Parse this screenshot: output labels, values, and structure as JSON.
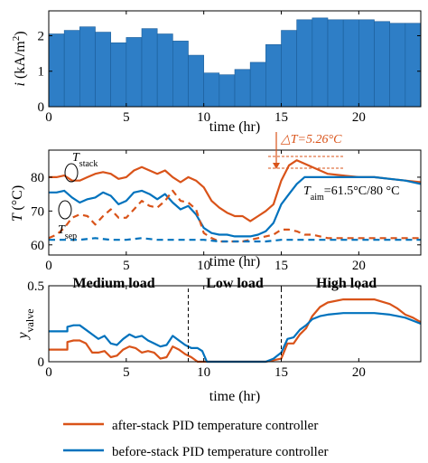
{
  "colors": {
    "after": "#D95319",
    "before": "#0072BD",
    "bar": "#2E7EC6"
  },
  "chart_data": [
    {
      "type": "bar",
      "ylabel_var": "i",
      "ylabel_unit": "(kA/m",
      "ylabel_sup": "2",
      "ylabel_end": ")",
      "xlabel": "time (hr)",
      "xlim": [
        0,
        24
      ],
      "ylim": [
        0,
        2.7
      ],
      "xticks": [
        "0",
        "5",
        "10",
        "15",
        "20"
      ],
      "xtick_values": [
        0,
        5,
        10,
        15,
        20
      ],
      "yticks": [
        "0",
        "1",
        "2"
      ],
      "ytick_values": [
        0,
        1,
        2
      ],
      "bar_width_hr": 1,
      "x": [
        0,
        1,
        2,
        3,
        4,
        5,
        6,
        7,
        8,
        9,
        10,
        11,
        12,
        13,
        14,
        15,
        16,
        17,
        18,
        19,
        20,
        21,
        22,
        23
      ],
      "values": [
        2.05,
        2.15,
        2.25,
        2.1,
        1.8,
        1.95,
        2.2,
        2.05,
        1.85,
        1.45,
        0.95,
        0.9,
        1.05,
        1.25,
        1.75,
        2.15,
        2.45,
        2.5,
        2.45,
        2.45,
        2.45,
        2.4,
        2.35,
        2.35
      ]
    },
    {
      "type": "line",
      "ylabel_var": "T",
      "ylabel_unit": "(°C)",
      "xlabel": "time (hr)",
      "xlim": [
        0,
        24
      ],
      "ylim": [
        57,
        88
      ],
      "xticks": [
        "0",
        "5",
        "10",
        "15",
        "20"
      ],
      "xtick_values": [
        0,
        5,
        10,
        15,
        20
      ],
      "yticks": [
        "60",
        "70",
        "80"
      ],
      "ytick_values": [
        60,
        70,
        80
      ],
      "annotations": {
        "t_stack_main": "T",
        "t_stack_sub": "stack",
        "t_sep_main": "T",
        "t_sep_sub": "sep",
        "delta_t": "△T=5.26°C",
        "t_aim_main": "T",
        "t_aim_sub": "aim",
        "t_aim_value": "=61.5°C/80 °C"
      },
      "series": [
        {
          "key": "after_stack",
          "style": "solid",
          "color_key": "after",
          "x": [
            0,
            0.5,
            1,
            1.5,
            2,
            2.5,
            3,
            3.5,
            4,
            4.5,
            5,
            5.5,
            6,
            6.5,
            7,
            7.5,
            8,
            8.5,
            9,
            9.5,
            10,
            10.5,
            11,
            11.5,
            12,
            12.5,
            13,
            13.5,
            14,
            14.5,
            15,
            15.5,
            16,
            16.5,
            17,
            17.5,
            18,
            19,
            20,
            21,
            22,
            23,
            24
          ],
          "y": [
            80,
            80,
            80.5,
            79,
            79,
            80,
            81,
            81.5,
            81,
            79.5,
            80,
            82,
            83,
            82,
            81,
            82,
            80,
            78.5,
            80,
            79,
            77,
            73,
            71,
            69.5,
            68.5,
            68.5,
            67,
            68.5,
            70,
            72,
            79,
            83.5,
            85,
            84,
            83,
            82,
            81,
            80.5,
            80,
            80,
            79.5,
            79,
            78.5
          ]
        },
        {
          "key": "before_stack",
          "style": "solid",
          "color_key": "before",
          "x": [
            0,
            0.5,
            1,
            1.5,
            2,
            2.5,
            3,
            3.5,
            4,
            4.5,
            5,
            5.5,
            6,
            6.5,
            7,
            7.5,
            8,
            8.5,
            9,
            9.5,
            10,
            10.5,
            11,
            11.5,
            12,
            12.5,
            13,
            13.5,
            14,
            14.5,
            15,
            15.5,
            16,
            16.5,
            17,
            17.5,
            18,
            19,
            20,
            21,
            22,
            23,
            24
          ],
          "y": [
            75.5,
            75.5,
            76,
            74,
            72.5,
            73.5,
            74,
            75.5,
            74.5,
            72,
            73,
            75.5,
            76,
            75,
            73.5,
            75,
            72.5,
            70.5,
            71.5,
            69,
            65,
            63.5,
            63,
            63,
            62.5,
            62.5,
            62.5,
            63,
            64,
            66.5,
            72,
            75,
            78,
            80,
            80,
            80,
            80,
            80,
            80,
            80,
            79.5,
            79,
            78
          ]
        },
        {
          "key": "after_sep",
          "style": "dashed",
          "color_key": "after",
          "x": [
            0,
            0.5,
            1,
            1.5,
            2,
            2.5,
            3,
            3.5,
            4,
            4.5,
            5,
            5.5,
            6,
            6.5,
            7,
            7.5,
            8,
            8.5,
            9,
            9.5,
            10,
            10.5,
            11,
            11.5,
            12,
            12.5,
            13,
            13.5,
            14,
            14.5,
            15,
            15.5,
            16,
            16.5,
            17,
            17.5,
            18,
            19,
            20,
            21,
            22,
            23,
            24
          ],
          "y": [
            62,
            63,
            65,
            68,
            69,
            68.5,
            66,
            68.5,
            70.5,
            68,
            68,
            70.5,
            73,
            71.5,
            71,
            73,
            76,
            73,
            72.5,
            70.5,
            63.5,
            62,
            61,
            61,
            61,
            61,
            61.5,
            62,
            62.5,
            63,
            64.5,
            64.5,
            64,
            63,
            63,
            62.5,
            62,
            62,
            62,
            62,
            62,
            62,
            62
          ]
        },
        {
          "key": "before_sep",
          "style": "dashed",
          "color_key": "before",
          "x": [
            0,
            1,
            2,
            3,
            4,
            5,
            6,
            7,
            8,
            9,
            10,
            11,
            12,
            13,
            14,
            15,
            16,
            17,
            18,
            19,
            20,
            21,
            22,
            23,
            24
          ],
          "y": [
            61.5,
            61.5,
            61.5,
            62,
            61.5,
            61.5,
            62,
            61.5,
            61.5,
            61.5,
            61.5,
            61,
            61,
            61,
            61,
            61.5,
            61.5,
            61.5,
            61.5,
            61.5,
            61.5,
            61.5,
            61.5,
            61.5,
            61.5
          ]
        }
      ]
    },
    {
      "type": "line",
      "ylabel_var": "y",
      "ylabel_sub": "valve",
      "xlabel": "time (hr)",
      "xlim": [
        0,
        24
      ],
      "ylim": [
        0,
        0.5
      ],
      "xticks": [
        "0",
        "5",
        "10",
        "15",
        "20"
      ],
      "xtick_values": [
        0,
        5,
        10,
        15,
        20
      ],
      "yticks": [
        "0",
        "0.5"
      ],
      "ytick_values": [
        0,
        0.5
      ],
      "regions": [
        {
          "label": "Medium load",
          "x_center": 4.2
        },
        {
          "label": "Low load",
          "x_center": 12.0
        },
        {
          "label": "High load",
          "x_center": 19.2
        }
      ],
      "dividers": [
        9,
        15
      ],
      "series": [
        {
          "key": "after",
          "style": "solid",
          "color_key": "after",
          "x": [
            0,
            0.6,
            1.2,
            1.2,
            1.6,
            2.0,
            2.4,
            2.8,
            3.2,
            3.6,
            4.0,
            4.4,
            4.8,
            5.2,
            5.6,
            6.0,
            6.4,
            6.8,
            7.2,
            7.6,
            8.0,
            8.4,
            8.8,
            9.2,
            9.6,
            10,
            11,
            12,
            13,
            14,
            14.5,
            15,
            15.4,
            15.8,
            16.2,
            16.6,
            17,
            17.5,
            18,
            19,
            20,
            21,
            22,
            22.5,
            23,
            23.5,
            24
          ],
          "y": [
            0.08,
            0.08,
            0.08,
            0.13,
            0.14,
            0.14,
            0.12,
            0.06,
            0.06,
            0.07,
            0.03,
            0.04,
            0.08,
            0.1,
            0.09,
            0.06,
            0.07,
            0.06,
            0.02,
            0.03,
            0.1,
            0.08,
            0.05,
            0.03,
            0,
            0,
            0,
            0,
            0,
            0,
            0.01,
            0.02,
            0.12,
            0.12,
            0.18,
            0.22,
            0.3,
            0.36,
            0.39,
            0.41,
            0.41,
            0.41,
            0.38,
            0.35,
            0.31,
            0.29,
            0.26
          ]
        },
        {
          "key": "before",
          "style": "solid",
          "color_key": "before",
          "x": [
            0,
            0.6,
            1.2,
            1.2,
            1.6,
            2.0,
            2.4,
            2.8,
            3.2,
            3.6,
            4.0,
            4.4,
            4.8,
            5.2,
            5.6,
            6.0,
            6.4,
            6.8,
            7.2,
            7.6,
            8.0,
            8.4,
            8.8,
            9.2,
            9.6,
            9.9,
            10.2,
            11,
            12,
            13,
            14,
            14.5,
            15,
            15.4,
            15.8,
            16.2,
            16.6,
            17,
            17.5,
            18,
            19,
            20,
            21,
            22,
            22.5,
            23,
            23.5,
            24
          ],
          "y": [
            0.2,
            0.2,
            0.2,
            0.23,
            0.24,
            0.24,
            0.21,
            0.18,
            0.15,
            0.17,
            0.12,
            0.11,
            0.15,
            0.18,
            0.16,
            0.17,
            0.14,
            0.12,
            0.1,
            0.11,
            0.17,
            0.14,
            0.11,
            0.09,
            0.09,
            0.07,
            0,
            0,
            0,
            0,
            0,
            0.02,
            0.06,
            0.15,
            0.16,
            0.21,
            0.24,
            0.28,
            0.3,
            0.31,
            0.32,
            0.32,
            0.32,
            0.31,
            0.3,
            0.29,
            0.27,
            0.25
          ]
        }
      ]
    }
  ],
  "legend": [
    {
      "label": "after-stack PID temperature controller",
      "color_key": "after"
    },
    {
      "label": "before-stack PID temperature controller",
      "color_key": "before"
    }
  ]
}
